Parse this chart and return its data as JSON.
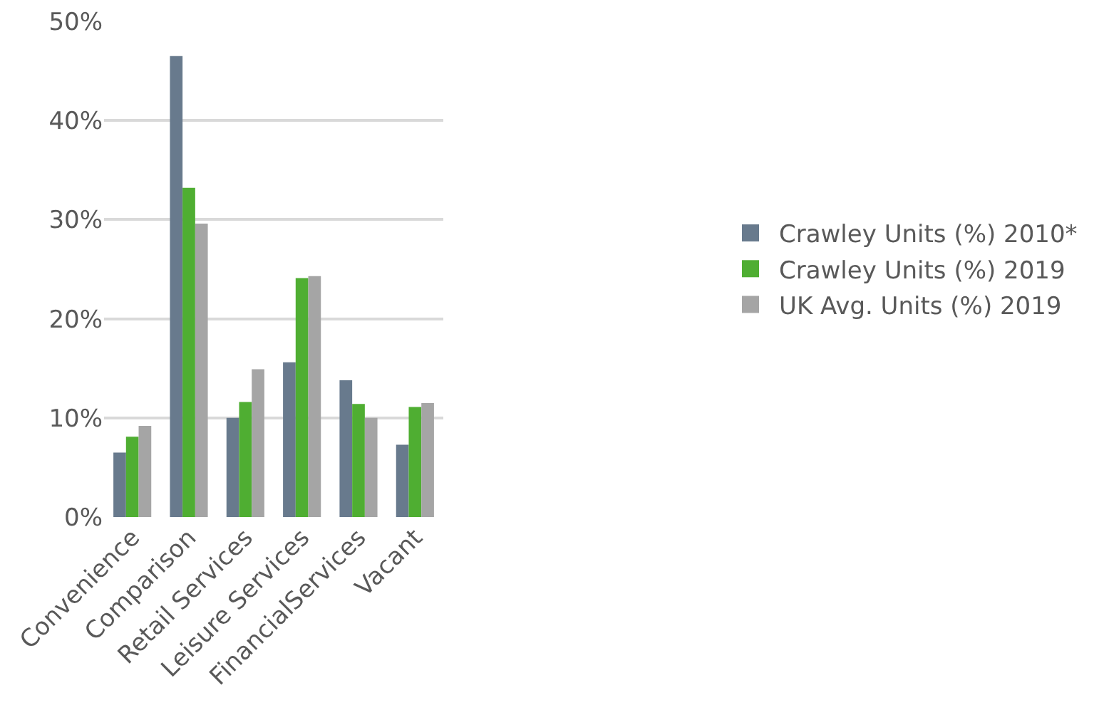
{
  "chart_data": {
    "type": "bar",
    "categories": [
      "Convenience",
      "Comparison",
      "Retail Services",
      "Leisure Services",
      "FinancialServices",
      "Vacant"
    ],
    "series": [
      {
        "name": "Crawley Units (%) 2010*",
        "color": "#687a8d",
        "values": [
          6.5,
          46.5,
          10.0,
          15.6,
          13.8,
          7.3
        ]
      },
      {
        "name": "Crawley Units (%) 2019",
        "color": "#4fae32",
        "values": [
          8.1,
          33.2,
          11.6,
          24.1,
          11.4,
          11.1
        ]
      },
      {
        "name": "UK Avg. Units (%) 2019",
        "color": "#a5a5a5",
        "values": [
          9.2,
          29.6,
          14.9,
          24.3,
          10.0,
          11.5
        ]
      }
    ],
    "ylim": [
      0,
      50
    ],
    "yticks": [
      {
        "value": 0,
        "label": "0%"
      },
      {
        "value": 10,
        "label": "10%"
      },
      {
        "value": 20,
        "label": "20%"
      },
      {
        "value": 30,
        "label": "30%"
      },
      {
        "value": 40,
        "label": "40%"
      },
      {
        "value": 50,
        "label": "50%"
      }
    ],
    "grid": "y",
    "legend": "right"
  }
}
